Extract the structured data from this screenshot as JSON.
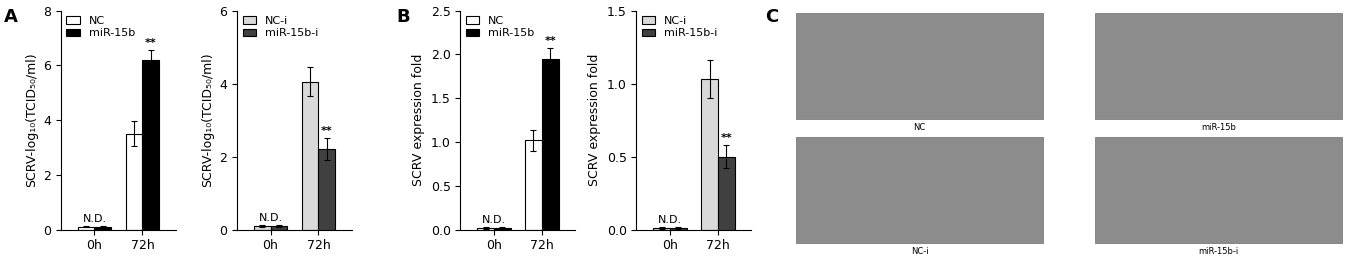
{
  "panel_labels": [
    "A",
    "B",
    "C"
  ],
  "chart_data": [
    {
      "type": "bar",
      "ylabel": "SCRV-log₁₀(TCID₅₀/ml)",
      "categories": [
        "0h",
        "72h"
      ],
      "series": [
        {
          "name": "NC",
          "color": "#ffffff",
          "values": [
            0.1,
            3.5
          ],
          "errors": [
            0.02,
            0.45
          ]
        },
        {
          "name": "miR-15b",
          "color": "#000000",
          "values": [
            0.1,
            6.2
          ],
          "errors": [
            0.02,
            0.35
          ]
        }
      ],
      "ylim": [
        0,
        8
      ],
      "yticks": [
        0,
        2,
        4,
        6,
        8
      ],
      "legend": "upper left",
      "annotations": [
        {
          "text": "N.D.",
          "category": "0h"
        },
        {
          "text": "**",
          "category": "72h",
          "series": "miR-15b"
        }
      ]
    },
    {
      "type": "bar",
      "ylabel": "SCRV-log₁₀(TCID₅₀/ml)",
      "categories": [
        "0h",
        "72h"
      ],
      "series": [
        {
          "name": "NC-i",
          "color": "#d9d9d9",
          "values": [
            0.1,
            4.05
          ],
          "errors": [
            0.02,
            0.4
          ]
        },
        {
          "name": "miR-15b-i",
          "color": "#404040",
          "values": [
            0.1,
            2.2
          ],
          "errors": [
            0.02,
            0.3
          ]
        }
      ],
      "ylim": [
        0,
        6
      ],
      "yticks": [
        0,
        2,
        4,
        6
      ],
      "legend": "upper left",
      "annotations": [
        {
          "text": "N.D.",
          "category": "0h"
        },
        {
          "text": "**",
          "category": "72h",
          "series": "miR-15b-i"
        }
      ]
    },
    {
      "type": "bar",
      "ylabel": "SCRV expression fold",
      "categories": [
        "0h",
        "72h"
      ],
      "series": [
        {
          "name": "NC",
          "color": "#ffffff",
          "values": [
            0.02,
            1.02
          ],
          "errors": [
            0.01,
            0.12
          ]
        },
        {
          "name": "miR-15b",
          "color": "#000000",
          "values": [
            0.02,
            1.95
          ],
          "errors": [
            0.01,
            0.12
          ]
        }
      ],
      "ylim": [
        0,
        2.5
      ],
      "yticks": [
        {
          "value": 0,
          "label": "0.0"
        },
        {
          "value": 0.5,
          "label": "0.5"
        },
        {
          "value": 1,
          "label": "1.0"
        },
        {
          "value": 1.5,
          "label": "1.5"
        },
        {
          "value": 2,
          "label": "2.0"
        },
        {
          "value": 2.5,
          "label": "2.5"
        }
      ],
      "legend": "upper left",
      "annotations": [
        {
          "text": "N.D.",
          "category": "0h"
        },
        {
          "text": "**",
          "category": "72h",
          "series": "miR-15b"
        }
      ]
    },
    {
      "type": "bar",
      "ylabel": "SCRV expression fold",
      "categories": [
        "0h",
        "72h"
      ],
      "series": [
        {
          "name": "NC-i",
          "color": "#d9d9d9",
          "values": [
            0.01,
            1.03
          ],
          "errors": [
            0.005,
            0.13
          ]
        },
        {
          "name": "miR-15b-i",
          "color": "#404040",
          "values": [
            0.01,
            0.5
          ],
          "errors": [
            0.005,
            0.08
          ]
        }
      ],
      "ylim": [
        0,
        1.5
      ],
      "yticks": [
        {
          "value": 0,
          "label": "0.0"
        },
        {
          "value": 0.5,
          "label": "0.5"
        },
        {
          "value": 1,
          "label": "1.0"
        },
        {
          "value": 1.5,
          "label": "1.5"
        }
      ],
      "legend": "upper left",
      "annotations": [
        {
          "text": "N.D.",
          "category": "0h"
        },
        {
          "text": "**",
          "category": "72h",
          "series": "miR-15b-i"
        }
      ]
    }
  ],
  "images": [
    "NC",
    "miR-15b",
    "NC-i",
    "miR-15b-i"
  ]
}
